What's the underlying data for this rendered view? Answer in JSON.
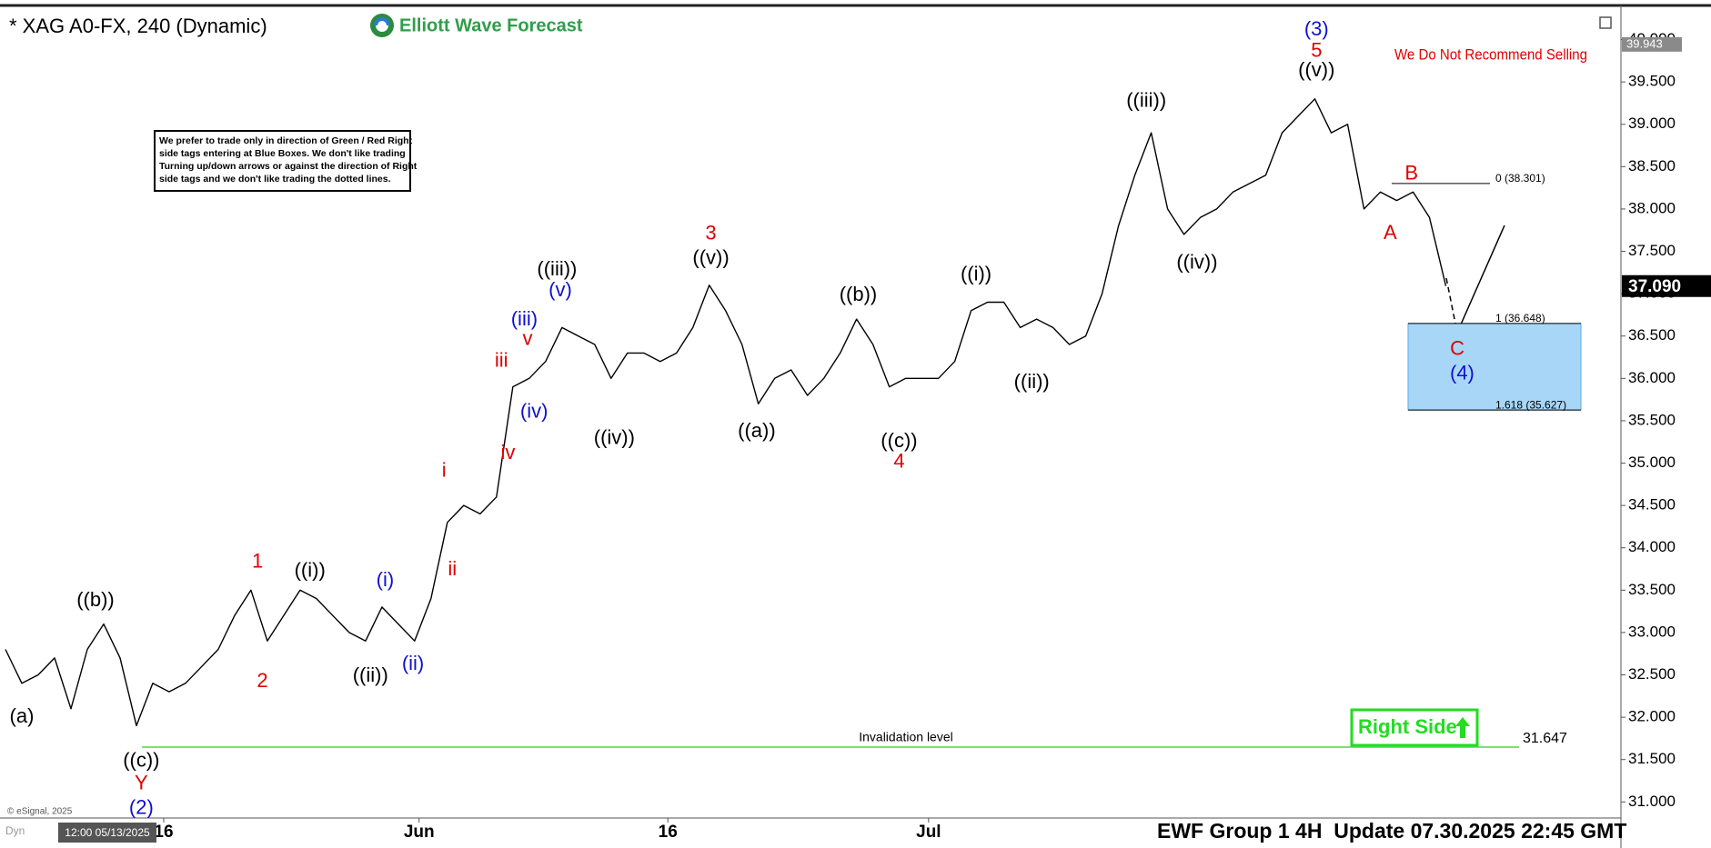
{
  "header": {
    "title": "* XAG A0-FX, 240 (Dynamic)",
    "logo": "Elliott Wave Forecast"
  },
  "chart_data": {
    "type": "line",
    "color": "#000000",
    "values": [
      32.8,
      32.4,
      32.5,
      32.7,
      32.1,
      32.8,
      33.1,
      32.7,
      31.9,
      32.4,
      32.3,
      32.4,
      32.6,
      32.8,
      33.2,
      33.5,
      32.9,
      33.2,
      33.5,
      33.4,
      33.2,
      33.0,
      32.9,
      33.3,
      33.1,
      32.9,
      33.4,
      34.3,
      34.5,
      34.4,
      34.6,
      35.9,
      36.0,
      36.2,
      36.6,
      36.5,
      36.4,
      36.0,
      36.3,
      36.3,
      36.2,
      36.3,
      36.6,
      37.1,
      36.8,
      36.4,
      35.7,
      36.0,
      36.1,
      35.8,
      36.0,
      36.3,
      36.7,
      36.4,
      35.9,
      36.0,
      36.0,
      36.0,
      36.2,
      36.8,
      36.9,
      36.9,
      36.6,
      36.7,
      36.6,
      36.4,
      36.5,
      37.0,
      37.8,
      38.4,
      38.9,
      38.0,
      37.7,
      37.9,
      38.0,
      38.2,
      38.3,
      38.4,
      38.9,
      39.1,
      39.3,
      38.9,
      39.0,
      38.0,
      38.2,
      38.1,
      38.2,
      37.9,
      37.09
    ],
    "xlim": [
      0,
      98.7
    ],
    "xticks": [
      {
        "value": 9.67,
        "label": "16"
      },
      {
        "value": 25.27,
        "label": "Jun"
      },
      {
        "value": 40.47,
        "label": "16"
      },
      {
        "value": 56.4,
        "label": "Jul"
      }
    ],
    "ylim": [
      30.81,
      40.36
    ],
    "yticks": [
      {
        "value": 31,
        "label": "31.000"
      },
      {
        "value": 31.5,
        "label": "31.500"
      },
      {
        "value": 32,
        "label": "32.000"
      },
      {
        "value": 32.5,
        "label": "32.500"
      },
      {
        "value": 33,
        "label": "33.000"
      },
      {
        "value": 33.5,
        "label": "33.500"
      },
      {
        "value": 34,
        "label": "34.000"
      },
      {
        "value": 34.5,
        "label": "34.500"
      },
      {
        "value": 35,
        "label": "35.000"
      },
      {
        "value": 35.5,
        "label": "35.500"
      },
      {
        "value": 36,
        "label": "36.000"
      },
      {
        "value": 36.5,
        "label": "36.500"
      },
      {
        "value": 37,
        "label": "37.000"
      },
      {
        "value": 37.5,
        "label": "37.500"
      },
      {
        "value": 38,
        "label": "38.000"
      },
      {
        "value": 38.5,
        "label": "38.500"
      },
      {
        "value": 39,
        "label": "39.000"
      },
      {
        "value": 39.5,
        "label": "39.500"
      },
      {
        "value": 40,
        "label": "40.000"
      }
    ],
    "last_price": {
      "value": 37.09,
      "label": "37.090"
    },
    "high_price": 39.943,
    "annotations": [
      {
        "text": "(a)",
        "x": 1.0,
        "y": 32.0,
        "color": "#000000"
      },
      {
        "text": "((b))",
        "x": 5.5,
        "y": 33.37,
        "color": "#000000"
      },
      {
        "text": "((c))",
        "x": 8.3,
        "y": 31.48,
        "color": "#000000"
      },
      {
        "text": "Y",
        "x": 8.3,
        "y": 31.21,
        "color": "#e00000"
      },
      {
        "text": "(2)",
        "x": 8.3,
        "y": 30.92,
        "color": "#1010d0"
      },
      {
        "text": "1",
        "x": 15.4,
        "y": 33.83,
        "color": "#e00000"
      },
      {
        "text": "2",
        "x": 15.7,
        "y": 32.42,
        "color": "#e00000"
      },
      {
        "text": "((i))",
        "x": 18.6,
        "y": 33.72,
        "color": "#000000"
      },
      {
        "text": "((ii))",
        "x": 22.3,
        "y": 32.48,
        "color": "#000000"
      },
      {
        "text": "(i)",
        "x": 23.2,
        "y": 33.61,
        "color": "#1010d0"
      },
      {
        "text": "(ii)",
        "x": 24.9,
        "y": 32.62,
        "color": "#1010d0"
      },
      {
        "text": "i",
        "x": 26.8,
        "y": 34.9,
        "color": "#e00000"
      },
      {
        "text": "ii",
        "x": 27.3,
        "y": 33.74,
        "color": "#e00000"
      },
      {
        "text": "iii",
        "x": 30.3,
        "y": 36.2,
        "color": "#e00000"
      },
      {
        "text": "iv",
        "x": 30.7,
        "y": 35.11,
        "color": "#e00000"
      },
      {
        "text": "v",
        "x": 31.9,
        "y": 36.46,
        "color": "#e00000"
      },
      {
        "text": "(iii)",
        "x": 31.7,
        "y": 36.69,
        "color": "#1010d0"
      },
      {
        "text": "(iv)",
        "x": 32.3,
        "y": 35.6,
        "color": "#1010d0"
      },
      {
        "text": "(v)",
        "x": 33.9,
        "y": 37.03,
        "color": "#1010d0"
      },
      {
        "text": "((iii))",
        "x": 33.7,
        "y": 37.28,
        "color": "#000000"
      },
      {
        "text": "((iv))",
        "x": 37.2,
        "y": 35.29,
        "color": "#000000"
      },
      {
        "text": "3",
        "x": 43.1,
        "y": 37.7,
        "color": "#e00000"
      },
      {
        "text": "((v))",
        "x": 43.1,
        "y": 37.41,
        "color": "#000000"
      },
      {
        "text": "((a))",
        "x": 45.9,
        "y": 35.37,
        "color": "#000000"
      },
      {
        "text": "((b))",
        "x": 52.1,
        "y": 36.98,
        "color": "#000000"
      },
      {
        "text": "((c))",
        "x": 54.6,
        "y": 35.25,
        "color": "#000000"
      },
      {
        "text": "4",
        "x": 54.6,
        "y": 35.01,
        "color": "#e00000"
      },
      {
        "text": "((i))",
        "x": 59.3,
        "y": 37.22,
        "color": "#000000"
      },
      {
        "text": "((ii))",
        "x": 62.7,
        "y": 35.95,
        "color": "#000000"
      },
      {
        "text": "((iii))",
        "x": 69.7,
        "y": 39.27,
        "color": "#000000"
      },
      {
        "text": "((iv))",
        "x": 72.8,
        "y": 37.36,
        "color": "#000000"
      },
      {
        "text": "(3)",
        "x": 80.1,
        "y": 40.11,
        "color": "#1010d0"
      },
      {
        "text": "5",
        "x": 80.1,
        "y": 39.86,
        "color": "#e00000"
      },
      {
        "text": "((v))",
        "x": 80.1,
        "y": 39.63,
        "color": "#000000"
      },
      {
        "text": "A",
        "x": 84.6,
        "y": 37.71,
        "color": "#e00000"
      },
      {
        "text": "B",
        "x": 85.9,
        "y": 38.41,
        "color": "#e00000"
      },
      {
        "text": "C",
        "x": 88.7,
        "y": 36.34,
        "color": "#e00000"
      },
      {
        "text": "(4)",
        "x": 89.0,
        "y": 36.05,
        "color": "#1010d0"
      }
    ],
    "fib_levels": [
      {
        "value": 38.301,
        "label": "0 (38.301)"
      },
      {
        "value": 36.648,
        "label": "1 (36.648)"
      },
      {
        "value": 35.627,
        "label": "1.618 (35.627)"
      }
    ],
    "invalidation": {
      "value": 31.647,
      "label": "Invalidation level"
    },
    "warning": "We Do Not Recommend Selling",
    "right_side": "Right Side"
  },
  "disclaimer": [
    "We prefer to trade only in direction of Green / Red Right",
    "side tags entering at Blue Boxes. We don't like trading",
    "Turning up/down arrows or against the direction of Right",
    "side tags and we don't like trading the dotted lines."
  ],
  "footer": {
    "update": "EWF Group 1 4H  Update 07.30.2025 22:45 GMT",
    "copyright": "© eSignal, 2025",
    "cursor_time": "12:00 05/13/2025",
    "mode": "Dyn"
  }
}
